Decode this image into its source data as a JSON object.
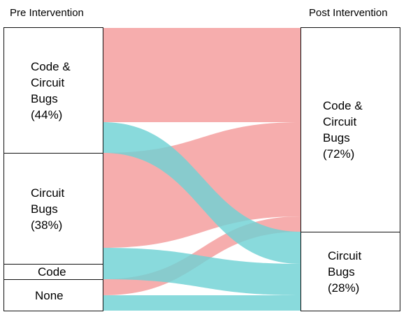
{
  "titles": {
    "pre": "Pre Intervention",
    "post": "Post Intervention"
  },
  "colors": {
    "code_circuit": "#f49f9f",
    "circuit": "#6fd2d4",
    "node_border": "#111111"
  },
  "pre_nodes": [
    {
      "id": "pre-code-circuit",
      "label": "Code &\nCircuit\nBugs\n(44%)"
    },
    {
      "id": "pre-circuit",
      "label": "Circuit\nBugs\n(38%)"
    },
    {
      "id": "pre-code",
      "label": "Code"
    },
    {
      "id": "pre-none",
      "label": "None"
    }
  ],
  "post_nodes": [
    {
      "id": "post-code-circuit",
      "label": "Code &\nCircuit\nBugs\n(72%)"
    },
    {
      "id": "post-circuit",
      "label": "Circuit\nBugs\n(28%)"
    }
  ]
}
